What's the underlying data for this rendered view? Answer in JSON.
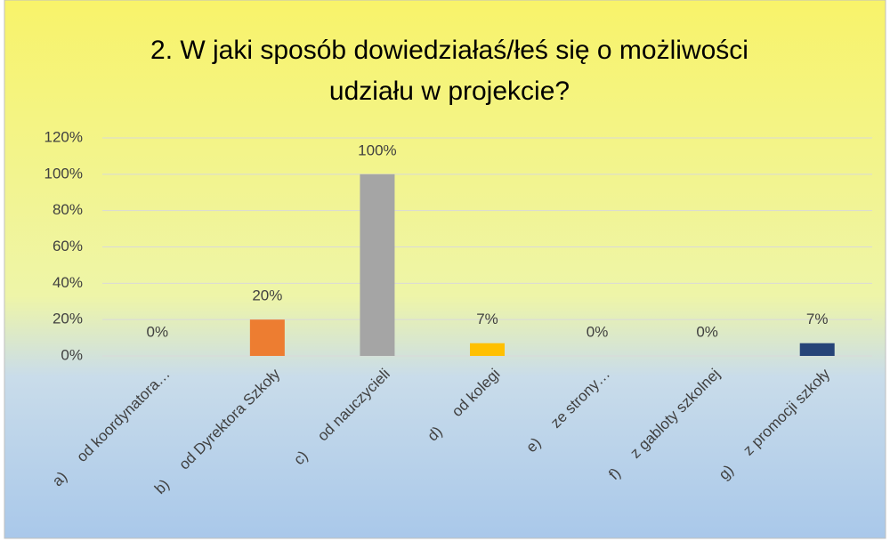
{
  "chart_data": {
    "type": "bar",
    "title": [
      "2.  W jaki sposób dowiedziałaś/łeś się o możliwości",
      "udziału w projekcie?"
    ],
    "categories": [
      "a)     od koordynatora…",
      "b)     od Dyrektora Szkoły",
      "c)     od nauczycieli",
      "d)     od kolegi",
      "e)     ze strony…",
      "f)     z gabloty szkolnej",
      "g)     z promocji szkoły"
    ],
    "values": [
      0,
      20,
      100,
      7,
      0,
      0,
      7
    ],
    "value_labels": [
      "0%",
      "20%",
      "100%",
      "7%",
      "0%",
      "0%",
      "7%"
    ],
    "colors": [
      "#4472c4",
      "#ed7d31",
      "#a5a5a5",
      "#ffc000",
      "#5b9bd5",
      "#70ad47",
      "#264478"
    ],
    "ylim": [
      0,
      120
    ],
    "yticks": [
      {
        "value": 0,
        "label": "0%"
      },
      {
        "value": 20,
        "label": "20%"
      },
      {
        "value": 40,
        "label": "40%"
      },
      {
        "value": 60,
        "label": "60%"
      },
      {
        "value": 80,
        "label": "80%"
      },
      {
        "value": 100,
        "label": "100%"
      },
      {
        "value": 120,
        "label": "120%"
      }
    ],
    "grid": true
  }
}
